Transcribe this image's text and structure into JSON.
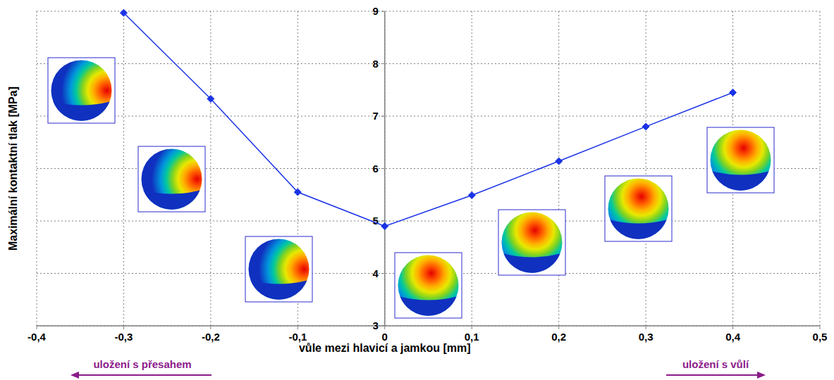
{
  "chart_data": {
    "type": "line",
    "x_label": "vůle mezi hlavicí a jamkou [mm]",
    "y_label": "Maximální kontaktní tlak [MPa]",
    "annotations": [
      "uložení s přesahem",
      "uložení s vůlí"
    ],
    "x": [
      -0.3,
      -0.2,
      -0.1,
      0,
      0.1,
      0.2,
      0.3,
      0.4
    ],
    "series": [
      {
        "color": "#1a33e6",
        "marker": "diamond",
        "line_style": "solid",
        "values": [
          8.97,
          7.33,
          5.55,
          4.9,
          5.49,
          6.14,
          6.8,
          7.45
        ]
      }
    ],
    "xlim": [
      -0.4,
      0.5
    ],
    "xticks": [
      {
        "value": -0.4,
        "label": "-0,4"
      },
      {
        "value": -0.3,
        "label": "-0,3"
      },
      {
        "value": -0.2,
        "label": "-0,2"
      },
      {
        "value": -0.1,
        "label": "-0,1"
      },
      0,
      {
        "value": 0.1,
        "label": "0,1"
      },
      {
        "value": 0.2,
        "label": "0,2"
      },
      {
        "value": 0.3,
        "label": "0,3"
      },
      {
        "value": 0.4,
        "label": "0,4"
      },
      {
        "value": 0.5,
        "label": "0,5"
      }
    ],
    "ylim": [
      3,
      9
    ],
    "yticks": [
      3,
      4,
      5,
      6,
      7,
      8,
      9
    ],
    "grid": true
  }
}
